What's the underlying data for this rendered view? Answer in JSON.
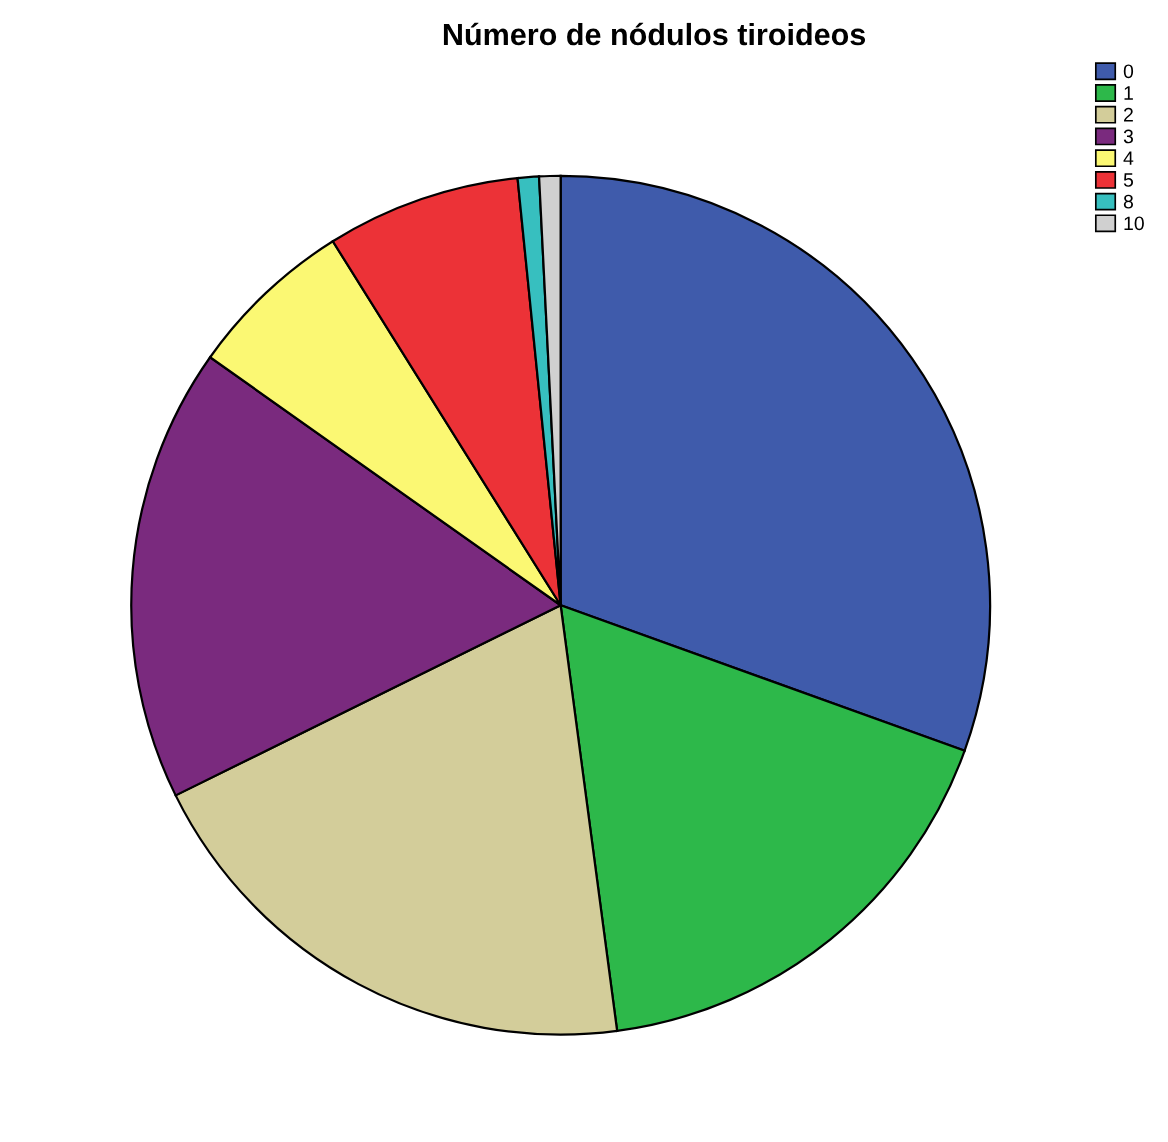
{
  "chart_data": {
    "type": "pie",
    "title": "Número de nódulos tiroideos",
    "categories": [
      "0",
      "1",
      "2",
      "3",
      "4",
      "5",
      "8",
      "10"
    ],
    "values": [
      30.5,
      17.4,
      19.8,
      17.1,
      6.3,
      7.3,
      0.8,
      0.8
    ],
    "colors": [
      "#3f5bab",
      "#2db84a",
      "#d3cd9a",
      "#7a2a7e",
      "#fbf873",
      "#ec3237",
      "#37bfbf",
      "#d0d0d0"
    ],
    "legend": "top right"
  }
}
